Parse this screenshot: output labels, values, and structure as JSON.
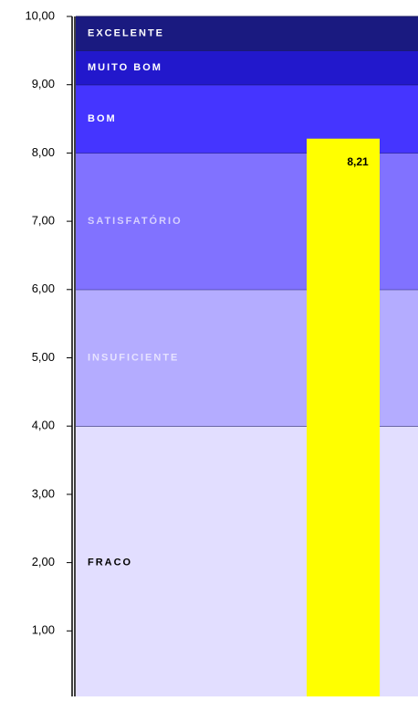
{
  "chart_data": {
    "type": "bar",
    "categories": [
      null
    ],
    "values": [
      8.21
    ],
    "value_labels": [
      "8,21"
    ],
    "color": "#ffff00",
    "ylim": [
      0,
      10
    ],
    "yticks": [
      {
        "value": 1,
        "label": "1,00"
      },
      {
        "value": 2,
        "label": "2,00"
      },
      {
        "value": 3,
        "label": "3,00"
      },
      {
        "value": 4,
        "label": "4,00"
      },
      {
        "value": 5,
        "label": "5,00"
      },
      {
        "value": 6,
        "label": "6,00"
      },
      {
        "value": 7,
        "label": "7,00"
      },
      {
        "value": 8,
        "label": "8,00"
      },
      {
        "value": 9,
        "label": "9,00"
      },
      {
        "value": 10,
        "label": "10,00"
      }
    ],
    "bands": [
      {
        "name": "FRACO",
        "from": 0,
        "to": 4,
        "color": "#e2deff",
        "label_color": "#000000"
      },
      {
        "name": "INSUFICIENTE",
        "from": 4,
        "to": 6,
        "color": "#b4acff",
        "label_color": "#e6e2ff"
      },
      {
        "name": "SATISFATÓRIO",
        "from": 6,
        "to": 8,
        "color": "#8172ff",
        "label_color": "#d6d0ff"
      },
      {
        "name": "BOM",
        "from": 8,
        "to": 9,
        "color": "#4535ff",
        "label_color": "#ffffff"
      },
      {
        "name": "MUITO BOM",
        "from": 9,
        "to": 9.5,
        "color": "#2218cc",
        "label_color": "#ffffff"
      },
      {
        "name": "EXCELENTE",
        "from": 9.5,
        "to": 10,
        "color": "#1a1a80",
        "label_color": "#ffffff"
      }
    ]
  }
}
